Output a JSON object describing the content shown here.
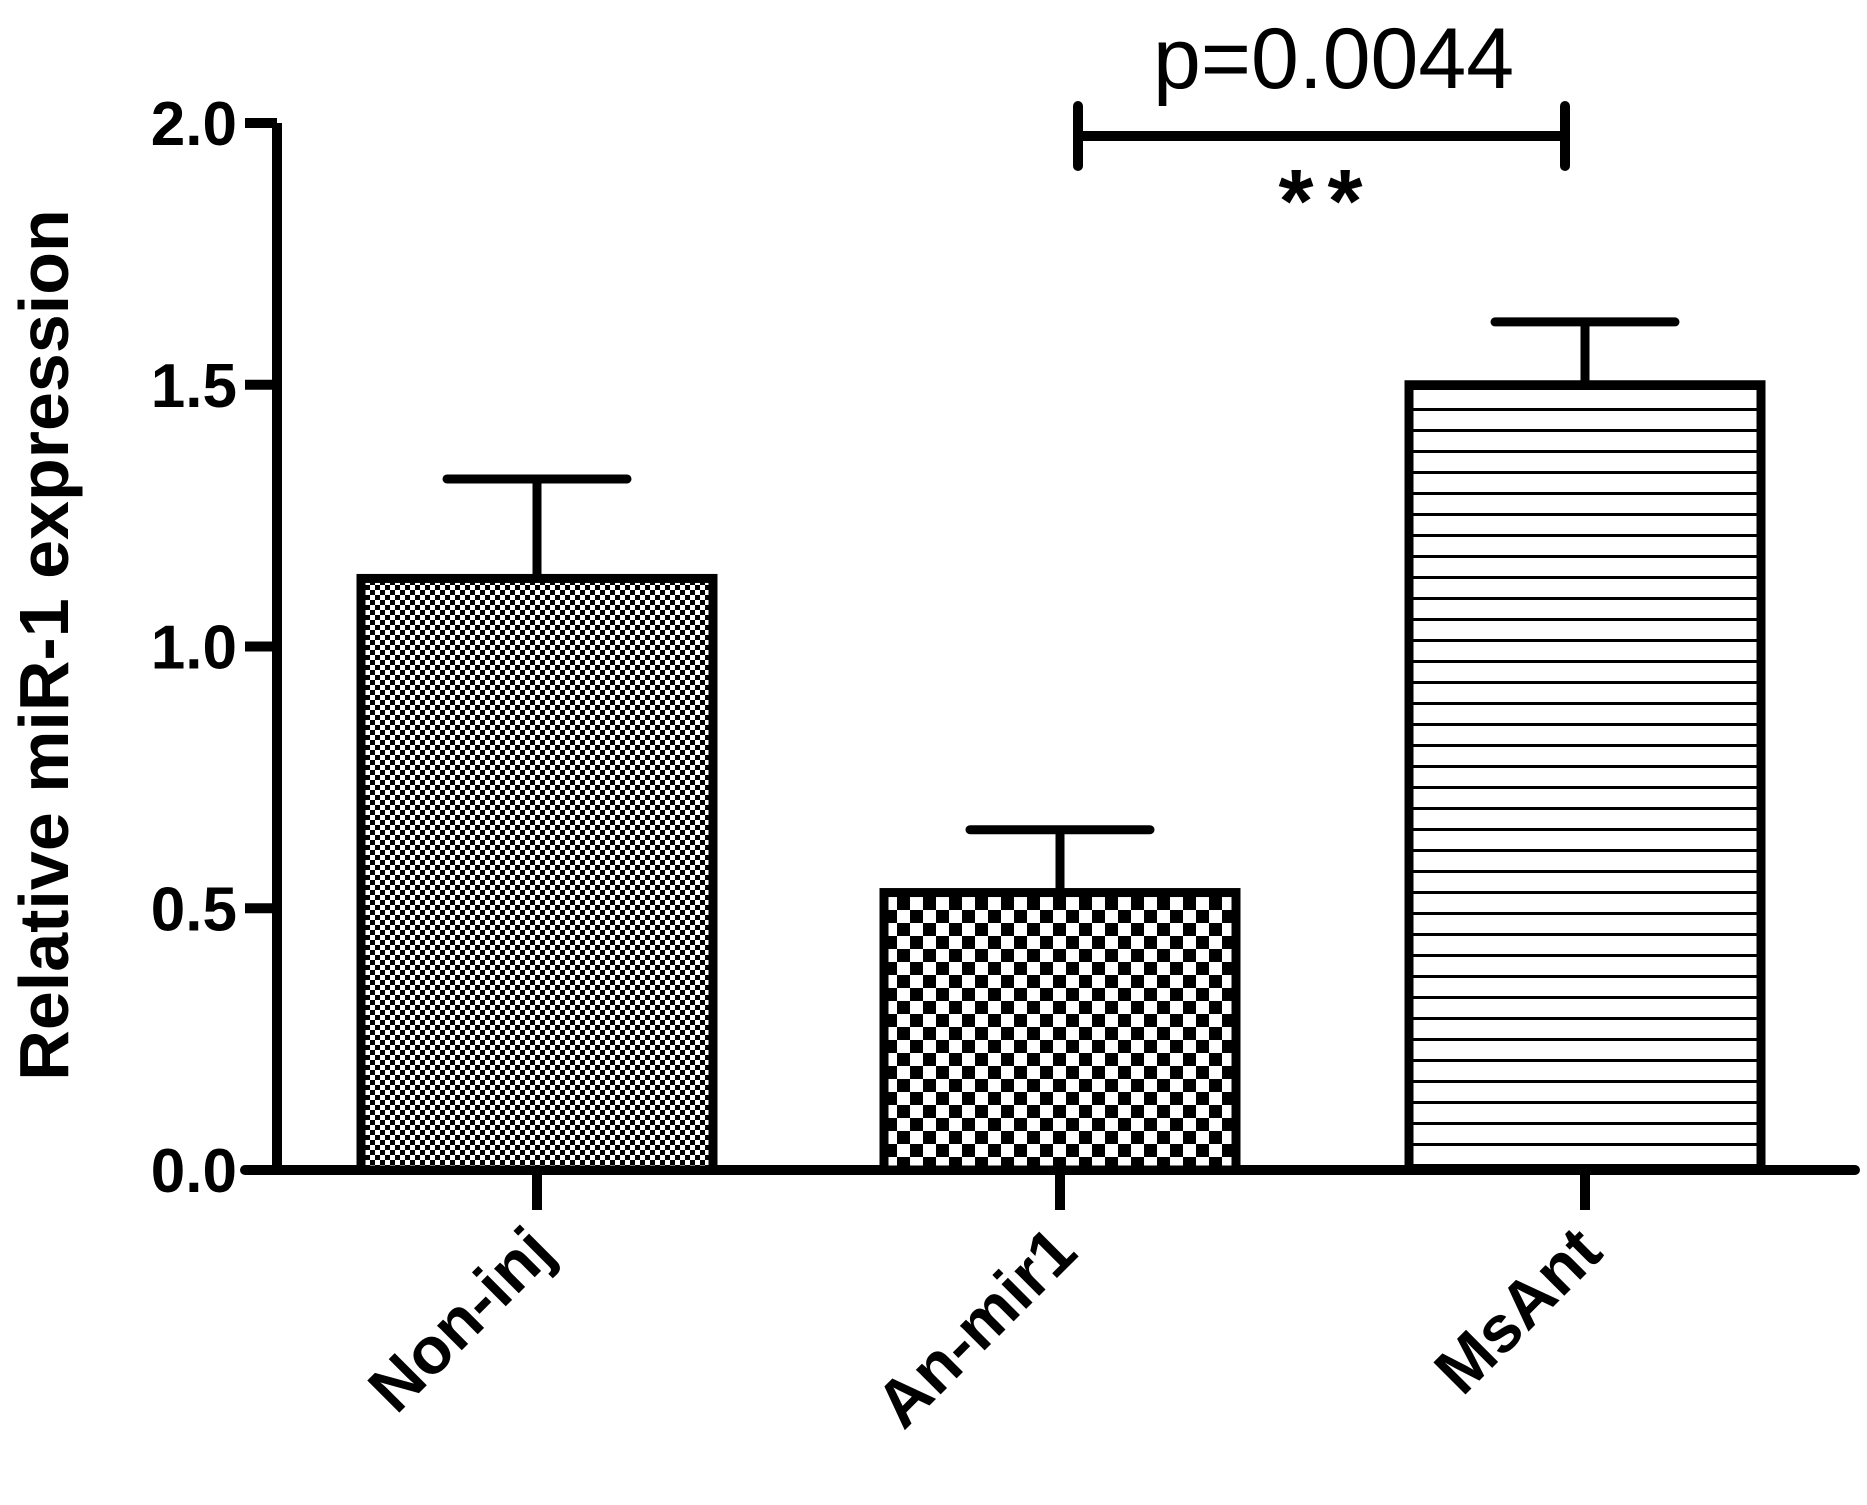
{
  "chart_data": {
    "type": "bar",
    "categories": [
      "Non-inj",
      "An-mir1",
      "MsAnt"
    ],
    "values": [
      1.13,
      0.53,
      1.5
    ],
    "errors": [
      0.19,
      0.12,
      0.12
    ],
    "patterns": [
      "fine-check",
      "coarse-check",
      "horizontal-lines"
    ],
    "ylabel": "Relative miR-1 expression",
    "xlabel": "",
    "ylim": [
      0,
      2.0
    ],
    "yticks": [
      "0.0",
      "0.5",
      "1.0",
      "1.5",
      "2.0"
    ],
    "ytick_values": [
      0,
      0.5,
      1.0,
      1.5,
      2.0
    ],
    "grid": false,
    "annotations": [
      {
        "from": "An-mir1",
        "to": "MsAnt",
        "text": "p=0.0044",
        "stars": "**"
      }
    ]
  }
}
